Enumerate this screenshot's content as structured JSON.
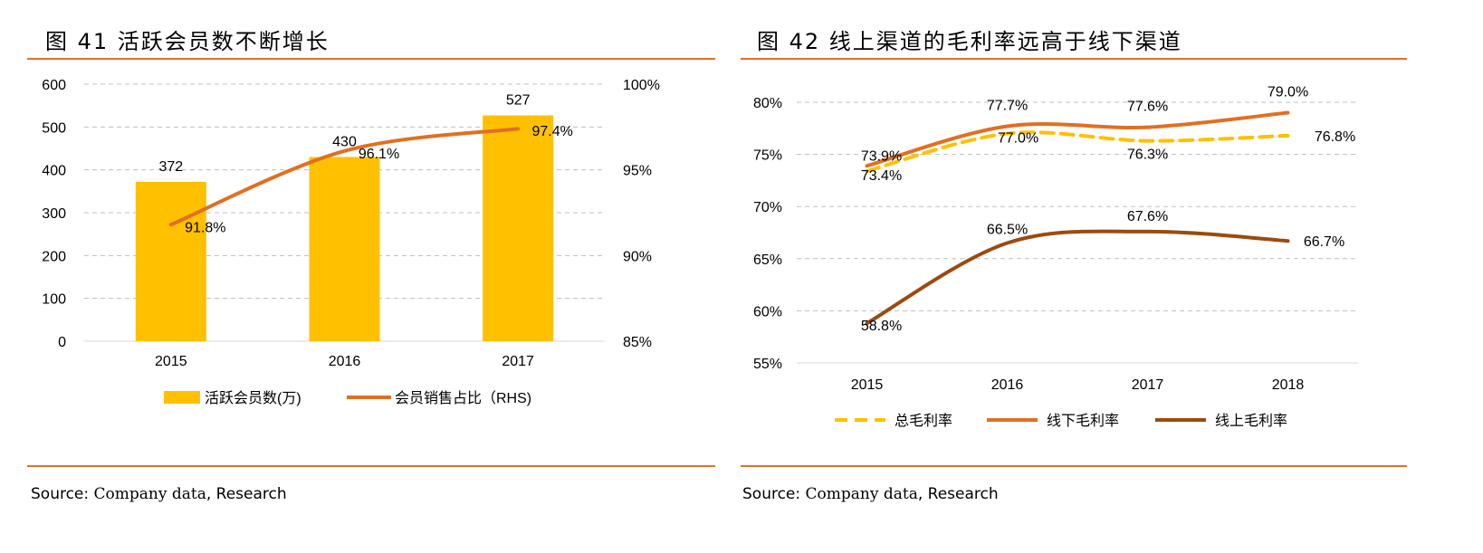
{
  "left_title": "图 41 活跃会员数不断增长",
  "right_title": "图 42 线上渠道的毛利率远高于线下渠道",
  "left_source": {
    "label": "Source:",
    "text": "Company data",
    "suffix": ", Research"
  },
  "right_source": {
    "label": "Source:",
    "text": "Company data",
    "suffix": ", Research"
  },
  "colors": {
    "gold": "#FFC000",
    "orange": "#E07021",
    "brown": "#9C4A10",
    "dash": "#FFC000",
    "rule": "#E0702A",
    "grid": "#BFBFBF"
  },
  "chart_data": [
    {
      "type": "bar",
      "title": "活跃会员数不断增长",
      "categories": [
        "2015",
        "2016",
        "2017"
      ],
      "ylim": [
        0,
        600
      ],
      "y_ticks": [
        "0",
        "100",
        "200",
        "300",
        "400",
        "500",
        "600"
      ],
      "y_tick_values": [
        0,
        100,
        200,
        300,
        400,
        500,
        600
      ],
      "y2lim": [
        85,
        100
      ],
      "y2_ticks": [
        "85%",
        "90%",
        "95%",
        "100%"
      ],
      "y2_tick_values": [
        85,
        90,
        95,
        100
      ],
      "series": [
        {
          "name": "活跃会员数(万)",
          "type": "bar",
          "axis": "left",
          "values": [
            372,
            430,
            527
          ],
          "labels": [
            "372",
            "430",
            "527"
          ]
        },
        {
          "name": "会员销售占比（RHS)",
          "type": "line",
          "axis": "right",
          "values": [
            91.8,
            96.1,
            97.4
          ],
          "labels": [
            "91.8%",
            "96.1%",
            "97.4%"
          ]
        }
      ],
      "legend": [
        "活跃会员数(万)",
        "会员销售占比（RHS)"
      ],
      "legend_position": "bottom"
    },
    {
      "type": "line",
      "title": "线上渠道的毛利率远高于线下渠道",
      "categories": [
        "2015",
        "2016",
        "2017",
        "2018"
      ],
      "ylim": [
        55,
        80
      ],
      "y_ticks": [
        "55%",
        "60%",
        "65%",
        "70%",
        "75%",
        "80%"
      ],
      "y_tick_values": [
        55,
        60,
        65,
        70,
        75,
        80
      ],
      "series": [
        {
          "name": "总毛利率",
          "style": "dashed",
          "values": [
            73.4,
            77.0,
            76.3,
            76.8
          ],
          "labels": [
            "73.4%",
            "77.0%",
            "76.3%",
            "76.8%"
          ]
        },
        {
          "name": "线下毛利率",
          "style": "solid",
          "values": [
            73.9,
            77.7,
            77.6,
            79.0
          ],
          "labels": [
            "73.9%",
            "77.7%",
            "77.6%",
            "79.0%"
          ]
        },
        {
          "name": "线上毛利率",
          "style": "solid",
          "values": [
            58.8,
            66.5,
            67.6,
            66.7
          ],
          "labels": [
            "58.8%",
            "66.5%",
            "67.6%",
            "66.7%"
          ]
        }
      ],
      "legend": [
        "总毛利率",
        "线下毛利率",
        "线上毛利率"
      ],
      "legend_position": "bottom"
    }
  ]
}
